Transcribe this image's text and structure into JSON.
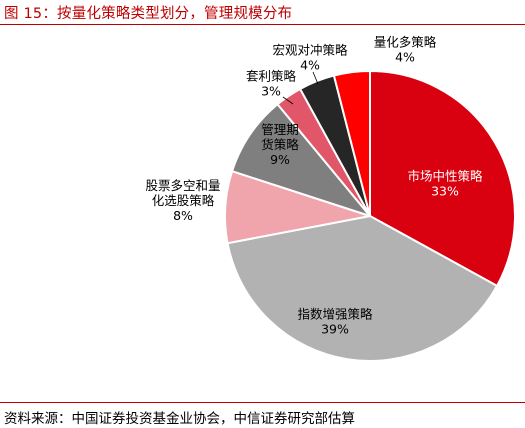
{
  "figure": {
    "title": "图 15：按量化策略类型划分，管理规模分布",
    "source": "资料来源：中国证券投资基金业协会，中信证券研究部估算"
  },
  "chart_data": {
    "type": "pie",
    "title": "",
    "unit": "%",
    "slices": [
      {
        "label": [
          "市场中性策略"
        ],
        "value": 33,
        "value_label": "33%",
        "color": "#d9000f"
      },
      {
        "label": [
          "指数增强策略"
        ],
        "value": 39,
        "value_label": "39%",
        "color": "#b2b2b2"
      },
      {
        "label": [
          "股票多空和量",
          "化选股策略"
        ],
        "value": 8,
        "value_label": "8%",
        "color": "#f0a4ac"
      },
      {
        "label": [
          "管理期",
          "货策略"
        ],
        "value": 9,
        "value_label": "9%",
        "color": "#7f7f7f"
      },
      {
        "label": [
          "套利策略"
        ],
        "value": 3,
        "value_label": "3%",
        "color": "#e2566a"
      },
      {
        "label": [
          "宏观对冲策略"
        ],
        "value": 4,
        "value_label": "4%",
        "color": "#262626"
      },
      {
        "label": [
          "量化多策略"
        ],
        "value": 4,
        "value_label": "4%",
        "color": "#ff0000"
      }
    ]
  }
}
